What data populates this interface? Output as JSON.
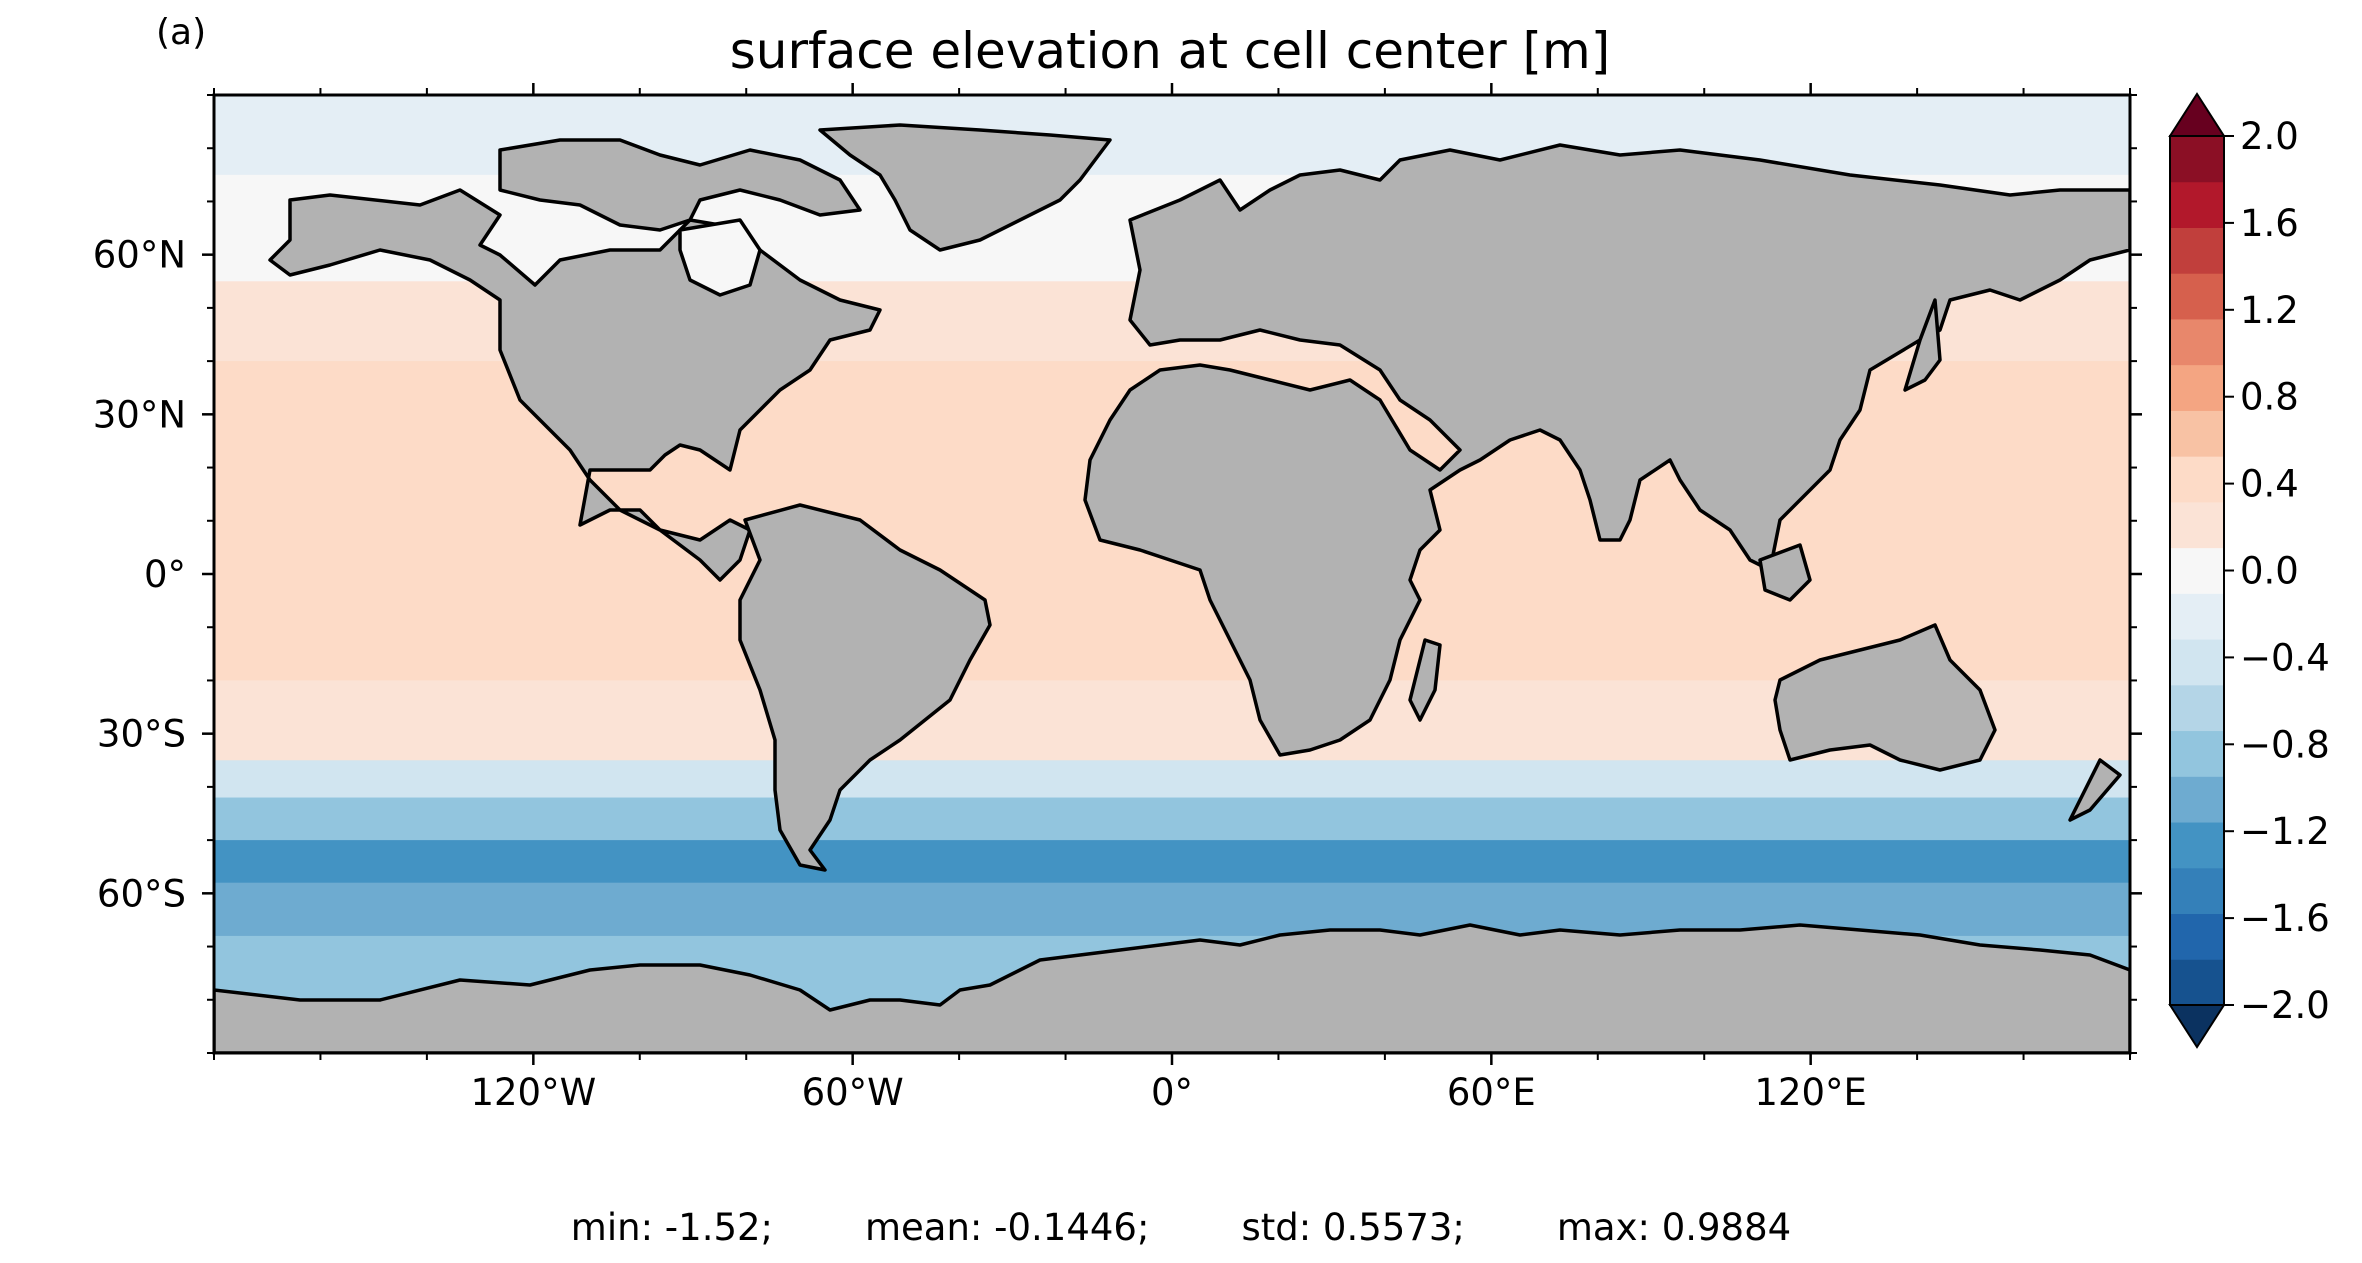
{
  "panel_label": "(a)",
  "title": "surface elevation at cell center [m]",
  "colors": {
    "land": "#b2b2b2",
    "coast": "#000000",
    "levels": [
      "#0b3260",
      "#16528f",
      "#2166ac",
      "#3480b9",
      "#4393c3",
      "#6eabd0",
      "#92c5de",
      "#b4d5e7",
      "#d1e5f0",
      "#e4eef5",
      "#f7f7f7",
      "#fbe3d6",
      "#fddbc7",
      "#f8c2a4",
      "#f4a582",
      "#e8876b",
      "#d6604d",
      "#c13f3c",
      "#b2182b",
      "#8b0f25",
      "#67001f"
    ]
  },
  "colorbar": {
    "min": -2.0,
    "max": 2.0,
    "step": 0.2,
    "extend": "both",
    "tick_labels": [
      "2.0",
      "1.6",
      "1.2",
      "0.8",
      "0.4",
      "0.0",
      "−0.4",
      "−0.8",
      "−1.2",
      "−1.6",
      "−2.0"
    ]
  },
  "axes": {
    "x_ticks": [
      "120°W",
      "60°W",
      "0°",
      "60°E",
      "120°E"
    ],
    "y_ticks": [
      "60°N",
      "30°N",
      "0°",
      "30°S",
      "60°S"
    ]
  },
  "stats": {
    "min": "min: -1.52;",
    "mean": "mean: -0.1446;",
    "std": "std: 0.5573;",
    "max": "max: 0.9884"
  },
  "field_bands": [
    {
      "lat": 90,
      "value": -0.4
    },
    {
      "lat": 75,
      "value": -0.4
    },
    {
      "lat": 55,
      "value": -0.2
    },
    {
      "lat": 40,
      "value": 0.1
    },
    {
      "lat": 25,
      "value": 0.3
    },
    {
      "lat": 10,
      "value": 0.2
    },
    {
      "lat": 0,
      "value": 0.3
    },
    {
      "lat": -20,
      "value": 0.3
    },
    {
      "lat": -35,
      "value": 0.1
    },
    {
      "lat": -42,
      "value": -0.5
    },
    {
      "lat": -50,
      "value": -1.0
    },
    {
      "lat": -58,
      "value": -1.3
    },
    {
      "lat": -68,
      "value": -1.2
    },
    {
      "lat": -80,
      "value": -1.0
    }
  ]
}
